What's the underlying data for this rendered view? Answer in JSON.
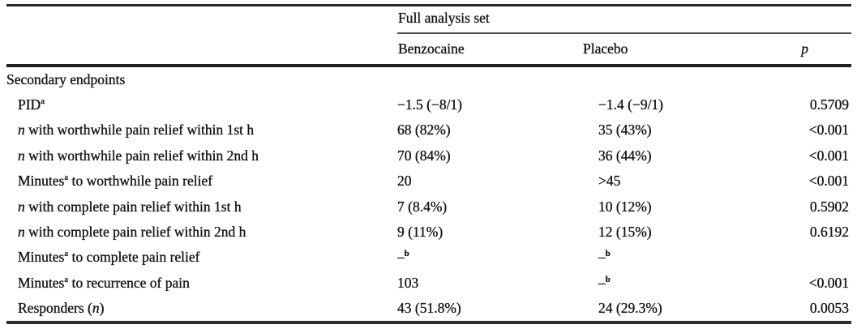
{
  "page": {
    "background_color": "#ffffff",
    "text_color": "#151515",
    "rule_color": "#262626"
  },
  "table": {
    "spanner_label": "Full analysis set",
    "column_headers": {
      "benzocaine": "Benzocaine",
      "placebo": "Placebo",
      "p": "p"
    },
    "rows": [
      {
        "section": "Secondary endpoints"
      },
      {
        "label": [
          {
            "text": "PID"
          },
          {
            "sup": "a"
          }
        ],
        "cells": [
          "−1.5 (−8/1)",
          "−1.4 (−9/1)",
          "0.5709"
        ]
      },
      {
        "label": [
          {
            "italic": "n"
          },
          {
            "text": " with worthwhile pain relief within 1st h"
          }
        ],
        "cells": [
          "68 (82%)",
          "35 (43%)",
          "<0.001"
        ]
      },
      {
        "label": [
          {
            "italic": "n"
          },
          {
            "text": " with worthwhile pain relief within 2nd h"
          }
        ],
        "cells": [
          "70 (84%)",
          "36 (44%)",
          "<0.001"
        ]
      },
      {
        "label": [
          {
            "text": "Minutes"
          },
          {
            "sup": "a"
          },
          {
            "text": " to worthwhile pain relief"
          }
        ],
        "cells": [
          "20",
          ">45",
          "<0.001"
        ]
      },
      {
        "label": [
          {
            "italic": "n"
          },
          {
            "text": " with complete pain relief within 1st h"
          }
        ],
        "cells": [
          "7 (8.4%)",
          "10 (12%)",
          "0.5902"
        ]
      },
      {
        "label": [
          {
            "italic": "n"
          },
          {
            "text": " with complete pain relief within 2nd h"
          }
        ],
        "cells": [
          "9 (11%)",
          "12 (15%)",
          "0.6192"
        ]
      },
      {
        "label": [
          {
            "text": "Minutes"
          },
          {
            "sup": "a"
          },
          {
            "text": " to complete pain relief"
          }
        ],
        "cells": [
          [
            {
              "text": "–"
            },
            {
              "sup": "b"
            }
          ],
          [
            {
              "text": "–"
            },
            {
              "sup": "b"
            }
          ],
          ""
        ]
      },
      {
        "label": [
          {
            "text": "Minutes"
          },
          {
            "sup": "a"
          },
          {
            "text": " to recurrence of pain"
          }
        ],
        "cells": [
          "103",
          [
            {
              "text": "–"
            },
            {
              "sup": "b"
            }
          ],
          "<0.001"
        ]
      },
      {
        "label": [
          {
            "text": "Responders ("
          },
          {
            "italic": "n"
          },
          {
            "text": ")"
          }
        ],
        "cells": [
          "43 (51.8%)",
          "24 (29.3%)",
          "0.0053"
        ]
      }
    ]
  }
}
